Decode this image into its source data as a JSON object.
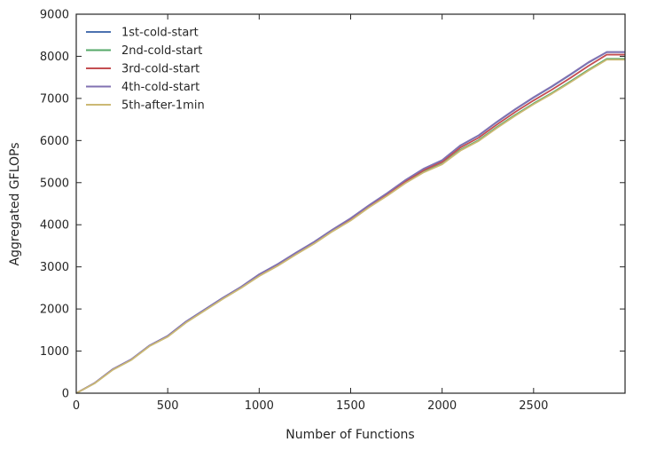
{
  "chart_data": {
    "type": "line",
    "title": "",
    "xlabel": "Number of Functions",
    "ylabel": "Aggregated GFLOPs",
    "xlim": [
      0,
      3000
    ],
    "ylim": [
      0,
      9000
    ],
    "xticks": [
      0,
      500,
      1000,
      1500,
      2000,
      2500
    ],
    "xtick_labels": [
      "0",
      "500",
      "1000",
      "1500",
      "2000",
      "2500"
    ],
    "yticks": [
      0,
      1000,
      2000,
      3000,
      4000,
      5000,
      6000,
      7000,
      8000,
      9000
    ],
    "ytick_labels": [
      "0",
      "1000",
      "2000",
      "3000",
      "4000",
      "5000",
      "6000",
      "7000",
      "8000",
      "9000"
    ],
    "grid": false,
    "legend_position": "top-left",
    "x": [
      0,
      100,
      200,
      300,
      400,
      500,
      600,
      700,
      800,
      900,
      1000,
      1100,
      1200,
      1300,
      1400,
      1500,
      1600,
      1700,
      1800,
      1900,
      2000,
      2100,
      2200,
      2300,
      2400,
      2500,
      2600,
      2700,
      2800,
      2900,
      3000
    ],
    "series": [
      {
        "name": "1st-cold-start",
        "color": "#4c72b0",
        "values": [
          0,
          240,
          570,
          800,
          1130,
          1360,
          1700,
          1980,
          2260,
          2520,
          2820,
          3060,
          3330,
          3590,
          3880,
          4150,
          4460,
          4750,
          5060,
          5330,
          5530,
          5880,
          6120,
          6440,
          6740,
          7020,
          7280,
          7560,
          7850,
          8100,
          8100
        ]
      },
      {
        "name": "2nd-cold-start",
        "color": "#55a868",
        "values": [
          0,
          235,
          560,
          790,
          1120,
          1345,
          1680,
          1960,
          2240,
          2500,
          2790,
          3030,
          3300,
          3560,
          3850,
          4110,
          4420,
          4700,
          5000,
          5260,
          5450,
          5780,
          6010,
          6320,
          6610,
          6880,
          7130,
          7400,
          7680,
          7940,
          7940
        ]
      },
      {
        "name": "3rd-cold-start",
        "color": "#c44e52",
        "values": [
          0,
          238,
          566,
          796,
          1126,
          1355,
          1692,
          1972,
          2252,
          2512,
          2808,
          3048,
          3318,
          3578,
          3868,
          4132,
          4442,
          4728,
          5032,
          5296,
          5492,
          5832,
          6068,
          6382,
          6678,
          6952,
          7208,
          7484,
          7772,
          8040,
          8040
        ]
      },
      {
        "name": "4th-cold-start",
        "color": "#8172b2",
        "values": [
          0,
          241,
          572,
          802,
          1132,
          1362,
          1702,
          1982,
          2262,
          2524,
          2824,
          3064,
          3334,
          3594,
          3884,
          4154,
          4464,
          4754,
          5064,
          5334,
          5534,
          5886,
          6126,
          6448,
          6748,
          7028,
          7290,
          7570,
          7860,
          8100,
          8100
        ]
      },
      {
        "name": "5th-after-1min",
        "color": "#ccb974",
        "values": [
          0,
          232,
          555,
          785,
          1115,
          1340,
          1675,
          1955,
          2235,
          2495,
          2780,
          3020,
          3290,
          3550,
          3840,
          4100,
          4410,
          4690,
          4990,
          5245,
          5435,
          5760,
          5990,
          6300,
          6590,
          6860,
          7110,
          7380,
          7660,
          7920,
          7920
        ]
      }
    ]
  }
}
